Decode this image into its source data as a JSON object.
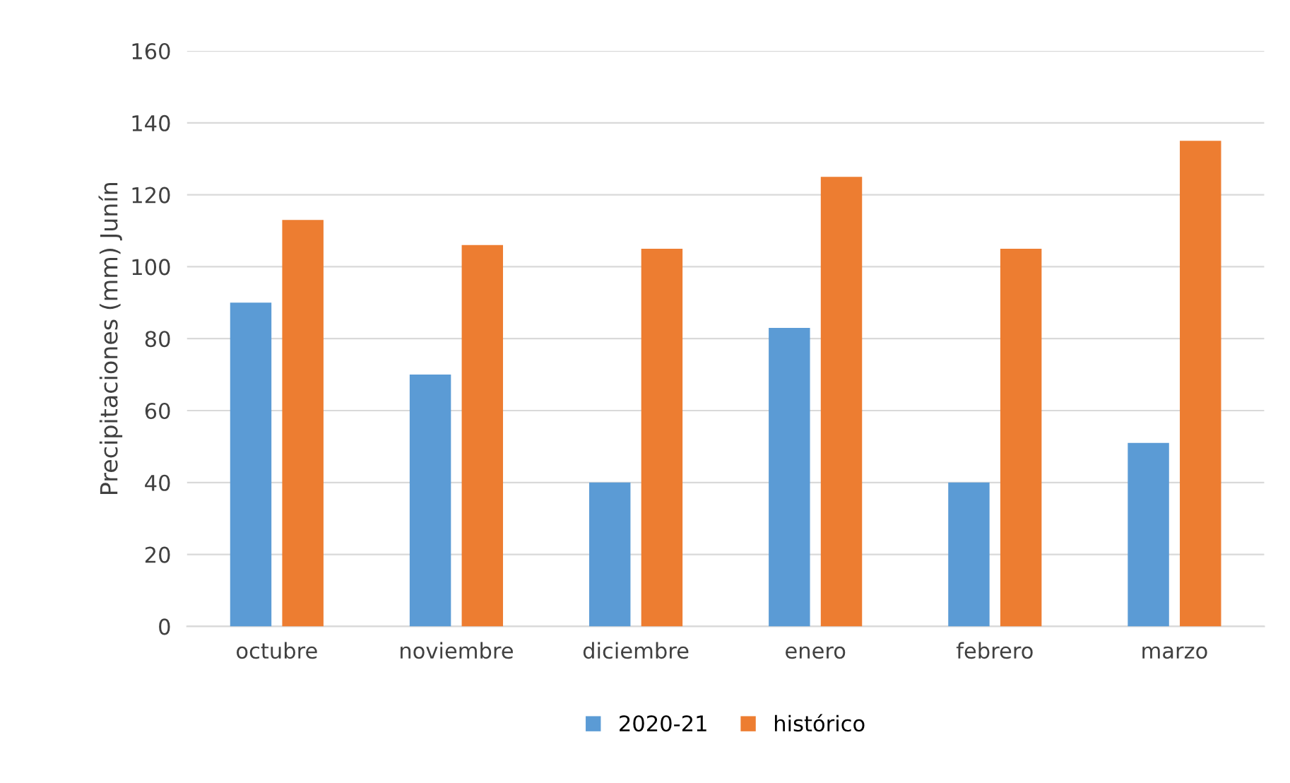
{
  "chart_data": {
    "type": "bar",
    "ylabel": "Precipitaciones (mm) Junín",
    "categories": [
      "octubre",
      "noviembre",
      "diciembre",
      "enero",
      "febrero",
      "marzo"
    ],
    "series": [
      {
        "name": "2020-21",
        "color": "#5b9bd5",
        "values": [
          90,
          70,
          40,
          83,
          40,
          51
        ]
      },
      {
        "name": "histórico",
        "color": "#ed7d31",
        "values": [
          113,
          106,
          105,
          125,
          105,
          135
        ]
      }
    ],
    "ylim": [
      0,
      160
    ],
    "yticks": [
      0,
      20,
      40,
      60,
      80,
      100,
      120,
      140,
      160
    ],
    "grid": "y",
    "legend": "bottom"
  }
}
